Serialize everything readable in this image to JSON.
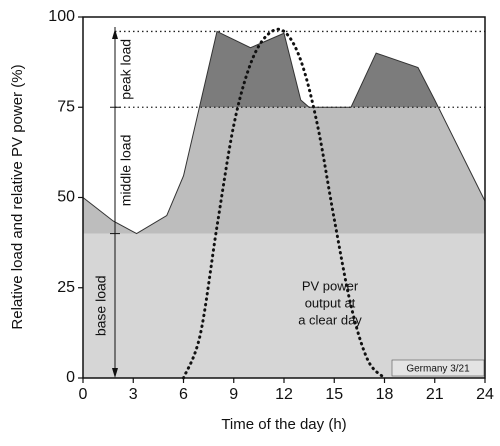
{
  "chart_data": {
    "type": "area",
    "xlabel": "Time of the day (h)",
    "ylabel": "Relative load and relative PV power (%)",
    "xlim": [
      0,
      24
    ],
    "xticks": [
      0,
      3,
      6,
      9,
      12,
      15,
      18,
      21,
      24
    ],
    "ylim": [
      0,
      100
    ],
    "yticks": [
      0,
      25,
      50,
      75,
      100
    ],
    "series": [
      {
        "kind": "area",
        "color": "#c4c4c4",
        "x": [
          0,
          1.8,
          3.2,
          5,
          6,
          8,
          10,
          12,
          13,
          13.5,
          16,
          17.5,
          20,
          21,
          24
        ],
        "values": [
          50,
          43.5,
          40,
          45,
          56,
          96,
          91.5,
          95.5,
          77,
          75,
          75,
          90,
          86,
          77,
          49
        ]
      },
      {
        "kind": "dotted",
        "color": "#111111",
        "x": [
          6,
          7,
          8,
          9,
          10,
          11,
          12,
          13,
          14,
          15,
          16,
          17,
          18
        ],
        "values": [
          0,
          12,
          42,
          70,
          87,
          95,
          96,
          88,
          70,
          44,
          20,
          5,
          0
        ]
      }
    ],
    "bands": [
      {
        "name": "base load",
        "from": 0,
        "to": 40,
        "color": "#d6d6d6"
      },
      {
        "name": "middle load",
        "from": 40,
        "to": 75,
        "color": "#bdbdbd"
      },
      {
        "name": "peak load",
        "from": 75,
        "to": 100,
        "color": "#7c7c7c"
      }
    ],
    "reference_lines": [
      75,
      96
    ],
    "annotations": {
      "pv": [
        "PV power",
        "output at",
        "a clear day"
      ],
      "place": "Germany 3/21"
    }
  }
}
